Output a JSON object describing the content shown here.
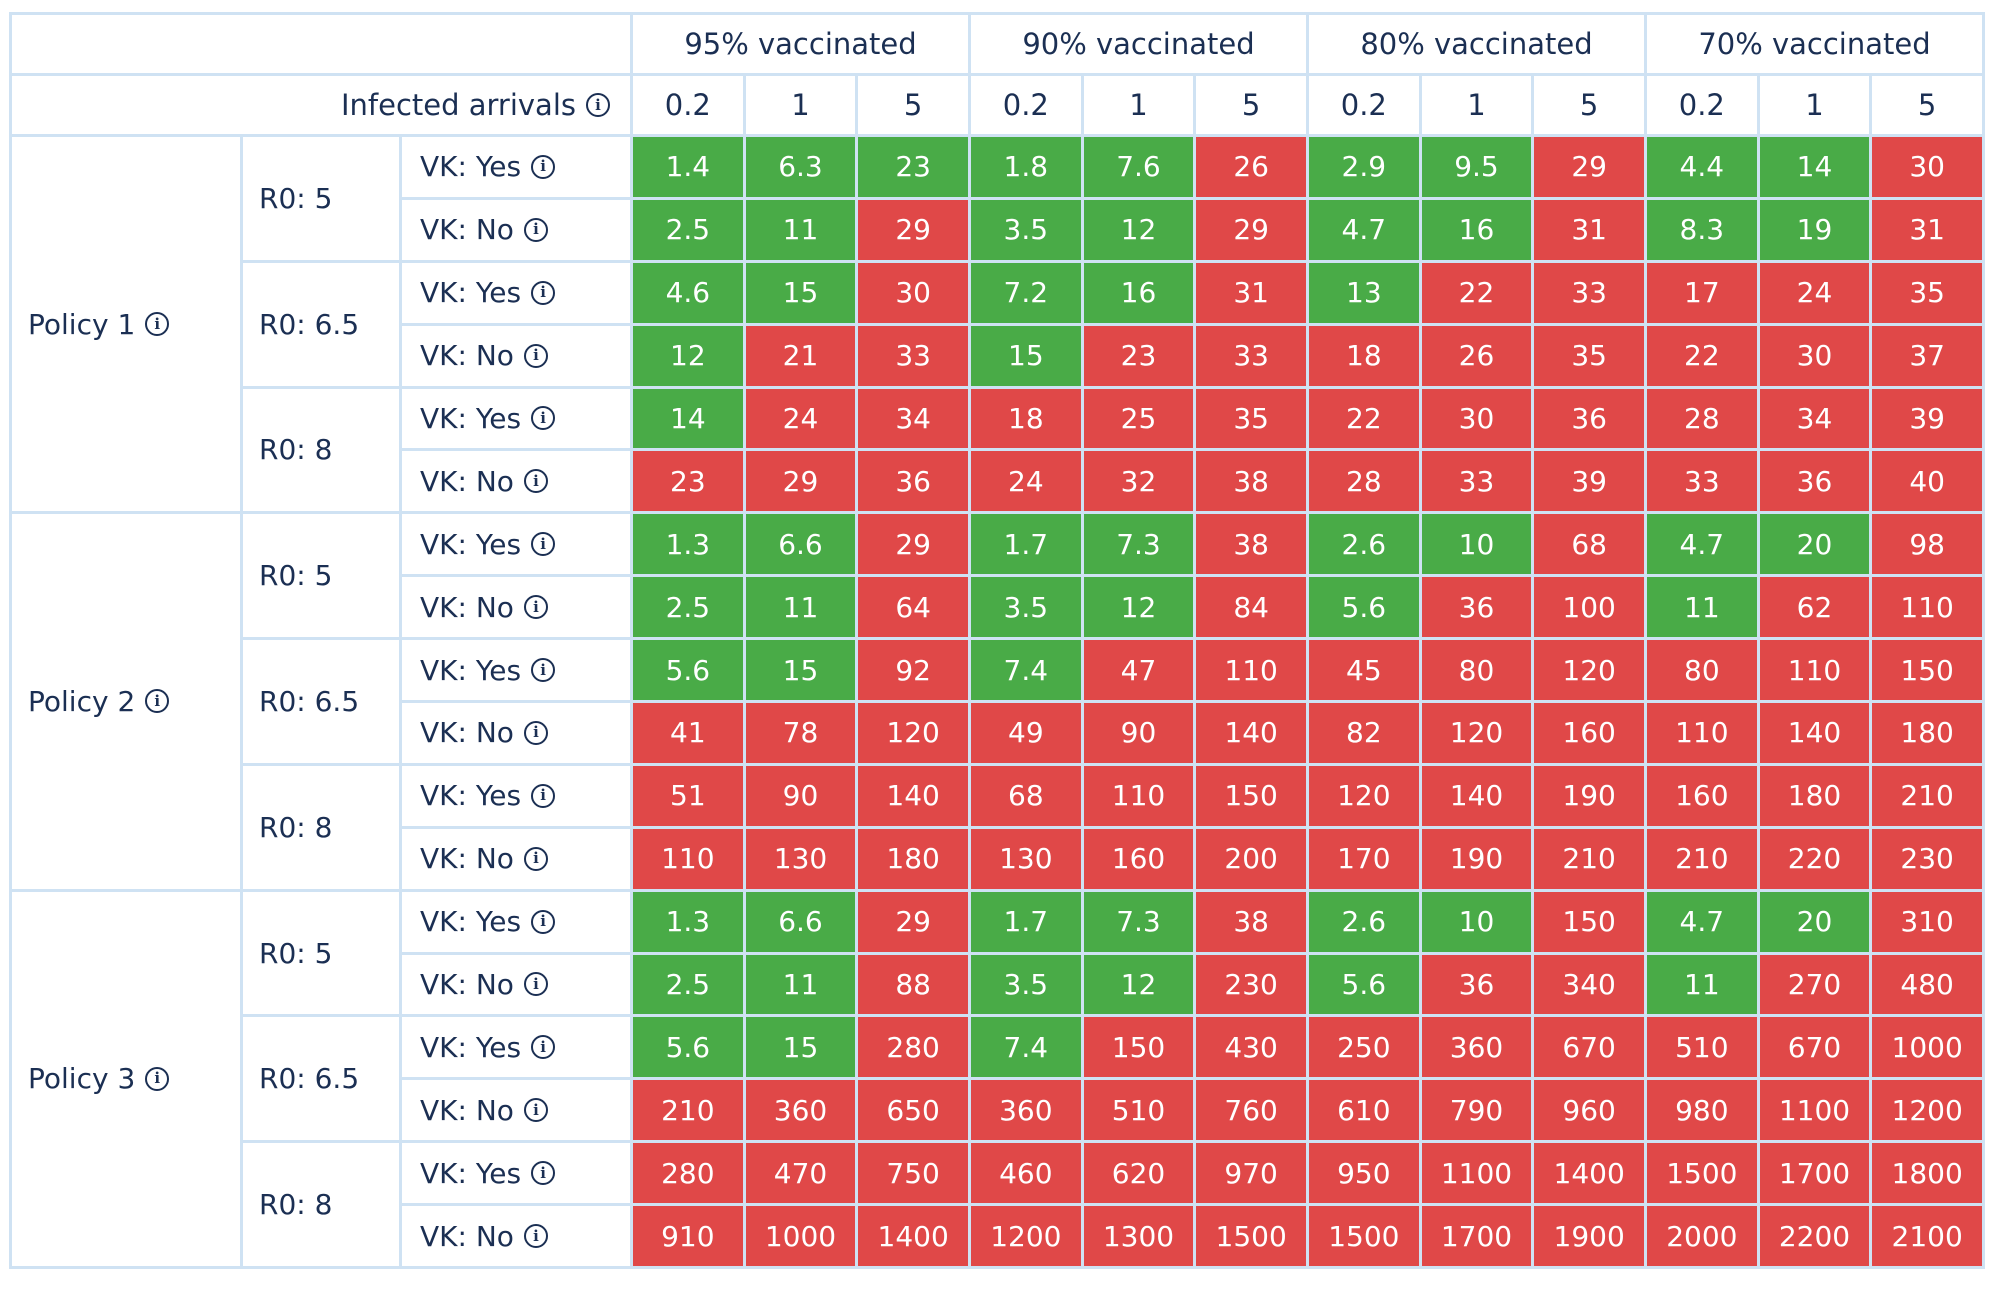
{
  "chart_data": {
    "type": "table",
    "header": {
      "column_groups": [
        "95% vaccinated",
        "90% vaccinated",
        "80% vaccinated",
        "70% vaccinated"
      ],
      "row_header_label": "Infected arrivals",
      "sub_columns": [
        "0.2",
        "1",
        "5"
      ]
    },
    "info_icon": "info-icon",
    "colors": {
      "green": "#49ab47",
      "red": "#e04848",
      "grid": "#cfe2f3",
      "text": "#1b2f53"
    },
    "policies": [
      {
        "label": "Policy 1",
        "r0": [
          {
            "label": "R0: 5",
            "rows": [
              {
                "label": "VK: Yes",
                "values": [
                  "1.4",
                  "6.3",
                  "23",
                  "1.8",
                  "7.6",
                  "26",
                  "2.9",
                  "9.5",
                  "29",
                  "4.4",
                  "14",
                  "30"
                ],
                "status": [
                  "g",
                  "g",
                  "g",
                  "g",
                  "g",
                  "r",
                  "g",
                  "g",
                  "r",
                  "g",
                  "g",
                  "r"
                ]
              },
              {
                "label": "VK: No",
                "values": [
                  "2.5",
                  "11",
                  "29",
                  "3.5",
                  "12",
                  "29",
                  "4.7",
                  "16",
                  "31",
                  "8.3",
                  "19",
                  "31"
                ],
                "status": [
                  "g",
                  "g",
                  "r",
                  "g",
                  "g",
                  "r",
                  "g",
                  "g",
                  "r",
                  "g",
                  "g",
                  "r"
                ]
              }
            ]
          },
          {
            "label": "R0: 6.5",
            "rows": [
              {
                "label": "VK: Yes",
                "values": [
                  "4.6",
                  "15",
                  "30",
                  "7.2",
                  "16",
                  "31",
                  "13",
                  "22",
                  "33",
                  "17",
                  "24",
                  "35"
                ],
                "status": [
                  "g",
                  "g",
                  "r",
                  "g",
                  "g",
                  "r",
                  "g",
                  "r",
                  "r",
                  "r",
                  "r",
                  "r"
                ]
              },
              {
                "label": "VK: No",
                "values": [
                  "12",
                  "21",
                  "33",
                  "15",
                  "23",
                  "33",
                  "18",
                  "26",
                  "35",
                  "22",
                  "30",
                  "37"
                ],
                "status": [
                  "g",
                  "r",
                  "r",
                  "g",
                  "r",
                  "r",
                  "r",
                  "r",
                  "r",
                  "r",
                  "r",
                  "r"
                ]
              }
            ]
          },
          {
            "label": "R0: 8",
            "rows": [
              {
                "label": "VK: Yes",
                "values": [
                  "14",
                  "24",
                  "34",
                  "18",
                  "25",
                  "35",
                  "22",
                  "30",
                  "36",
                  "28",
                  "34",
                  "39"
                ],
                "status": [
                  "g",
                  "r",
                  "r",
                  "r",
                  "r",
                  "r",
                  "r",
                  "r",
                  "r",
                  "r",
                  "r",
                  "r"
                ]
              },
              {
                "label": "VK: No",
                "values": [
                  "23",
                  "29",
                  "36",
                  "24",
                  "32",
                  "38",
                  "28",
                  "33",
                  "39",
                  "33",
                  "36",
                  "40"
                ],
                "status": [
                  "r",
                  "r",
                  "r",
                  "r",
                  "r",
                  "r",
                  "r",
                  "r",
                  "r",
                  "r",
                  "r",
                  "r"
                ]
              }
            ]
          }
        ]
      },
      {
        "label": "Policy 2",
        "r0": [
          {
            "label": "R0: 5",
            "rows": [
              {
                "label": "VK: Yes",
                "values": [
                  "1.3",
                  "6.6",
                  "29",
                  "1.7",
                  "7.3",
                  "38",
                  "2.6",
                  "10",
                  "68",
                  "4.7",
                  "20",
                  "98"
                ],
                "status": [
                  "g",
                  "g",
                  "r",
                  "g",
                  "g",
                  "r",
                  "g",
                  "g",
                  "r",
                  "g",
                  "g",
                  "r"
                ]
              },
              {
                "label": "VK: No",
                "values": [
                  "2.5",
                  "11",
                  "64",
                  "3.5",
                  "12",
                  "84",
                  "5.6",
                  "36",
                  "100",
                  "11",
                  "62",
                  "110"
                ],
                "status": [
                  "g",
                  "g",
                  "r",
                  "g",
                  "g",
                  "r",
                  "g",
                  "r",
                  "r",
                  "g",
                  "r",
                  "r"
                ]
              }
            ]
          },
          {
            "label": "R0: 6.5",
            "rows": [
              {
                "label": "VK: Yes",
                "values": [
                  "5.6",
                  "15",
                  "92",
                  "7.4",
                  "47",
                  "110",
                  "45",
                  "80",
                  "120",
                  "80",
                  "110",
                  "150"
                ],
                "status": [
                  "g",
                  "g",
                  "r",
                  "g",
                  "r",
                  "r",
                  "r",
                  "r",
                  "r",
                  "r",
                  "r",
                  "r"
                ]
              },
              {
                "label": "VK: No",
                "values": [
                  "41",
                  "78",
                  "120",
                  "49",
                  "90",
                  "140",
                  "82",
                  "120",
                  "160",
                  "110",
                  "140",
                  "180"
                ],
                "status": [
                  "r",
                  "r",
                  "r",
                  "r",
                  "r",
                  "r",
                  "r",
                  "r",
                  "r",
                  "r",
                  "r",
                  "r"
                ]
              }
            ]
          },
          {
            "label": "R0: 8",
            "rows": [
              {
                "label": "VK: Yes",
                "values": [
                  "51",
                  "90",
                  "140",
                  "68",
                  "110",
                  "150",
                  "120",
                  "140",
                  "190",
                  "160",
                  "180",
                  "210"
                ],
                "status": [
                  "r",
                  "r",
                  "r",
                  "r",
                  "r",
                  "r",
                  "r",
                  "r",
                  "r",
                  "r",
                  "r",
                  "r"
                ]
              },
              {
                "label": "VK: No",
                "values": [
                  "110",
                  "130",
                  "180",
                  "130",
                  "160",
                  "200",
                  "170",
                  "190",
                  "210",
                  "210",
                  "220",
                  "230"
                ],
                "status": [
                  "r",
                  "r",
                  "r",
                  "r",
                  "r",
                  "r",
                  "r",
                  "r",
                  "r",
                  "r",
                  "r",
                  "r"
                ]
              }
            ]
          }
        ]
      },
      {
        "label": "Policy 3",
        "r0": [
          {
            "label": "R0: 5",
            "rows": [
              {
                "label": "VK: Yes",
                "values": [
                  "1.3",
                  "6.6",
                  "29",
                  "1.7",
                  "7.3",
                  "38",
                  "2.6",
                  "10",
                  "150",
                  "4.7",
                  "20",
                  "310"
                ],
                "status": [
                  "g",
                  "g",
                  "r",
                  "g",
                  "g",
                  "r",
                  "g",
                  "g",
                  "r",
                  "g",
                  "g",
                  "r"
                ]
              },
              {
                "label": "VK: No",
                "values": [
                  "2.5",
                  "11",
                  "88",
                  "3.5",
                  "12",
                  "230",
                  "5.6",
                  "36",
                  "340",
                  "11",
                  "270",
                  "480"
                ],
                "status": [
                  "g",
                  "g",
                  "r",
                  "g",
                  "g",
                  "r",
                  "g",
                  "r",
                  "r",
                  "g",
                  "r",
                  "r"
                ]
              }
            ]
          },
          {
            "label": "R0: 6.5",
            "rows": [
              {
                "label": "VK: Yes",
                "values": [
                  "5.6",
                  "15",
                  "280",
                  "7.4",
                  "150",
                  "430",
                  "250",
                  "360",
                  "670",
                  "510",
                  "670",
                  "1000"
                ],
                "status": [
                  "g",
                  "g",
                  "r",
                  "g",
                  "r",
                  "r",
                  "r",
                  "r",
                  "r",
                  "r",
                  "r",
                  "r"
                ]
              },
              {
                "label": "VK: No",
                "values": [
                  "210",
                  "360",
                  "650",
                  "360",
                  "510",
                  "760",
                  "610",
                  "790",
                  "960",
                  "980",
                  "1100",
                  "1200"
                ],
                "status": [
                  "r",
                  "r",
                  "r",
                  "r",
                  "r",
                  "r",
                  "r",
                  "r",
                  "r",
                  "r",
                  "r",
                  "r"
                ]
              }
            ]
          },
          {
            "label": "R0: 8",
            "rows": [
              {
                "label": "VK: Yes",
                "values": [
                  "280",
                  "470",
                  "750",
                  "460",
                  "620",
                  "970",
                  "950",
                  "1100",
                  "1400",
                  "1500",
                  "1700",
                  "1800"
                ],
                "status": [
                  "r",
                  "r",
                  "r",
                  "r",
                  "r",
                  "r",
                  "r",
                  "r",
                  "r",
                  "r",
                  "r",
                  "r"
                ]
              },
              {
                "label": "VK: No",
                "values": [
                  "910",
                  "1000",
                  "1400",
                  "1200",
                  "1300",
                  "1500",
                  "1500",
                  "1700",
                  "1900",
                  "2000",
                  "2200",
                  "2100"
                ],
                "status": [
                  "r",
                  "r",
                  "r",
                  "r",
                  "r",
                  "r",
                  "r",
                  "r",
                  "r",
                  "r",
                  "r",
                  "r"
                ]
              }
            ]
          }
        ]
      }
    ]
  }
}
